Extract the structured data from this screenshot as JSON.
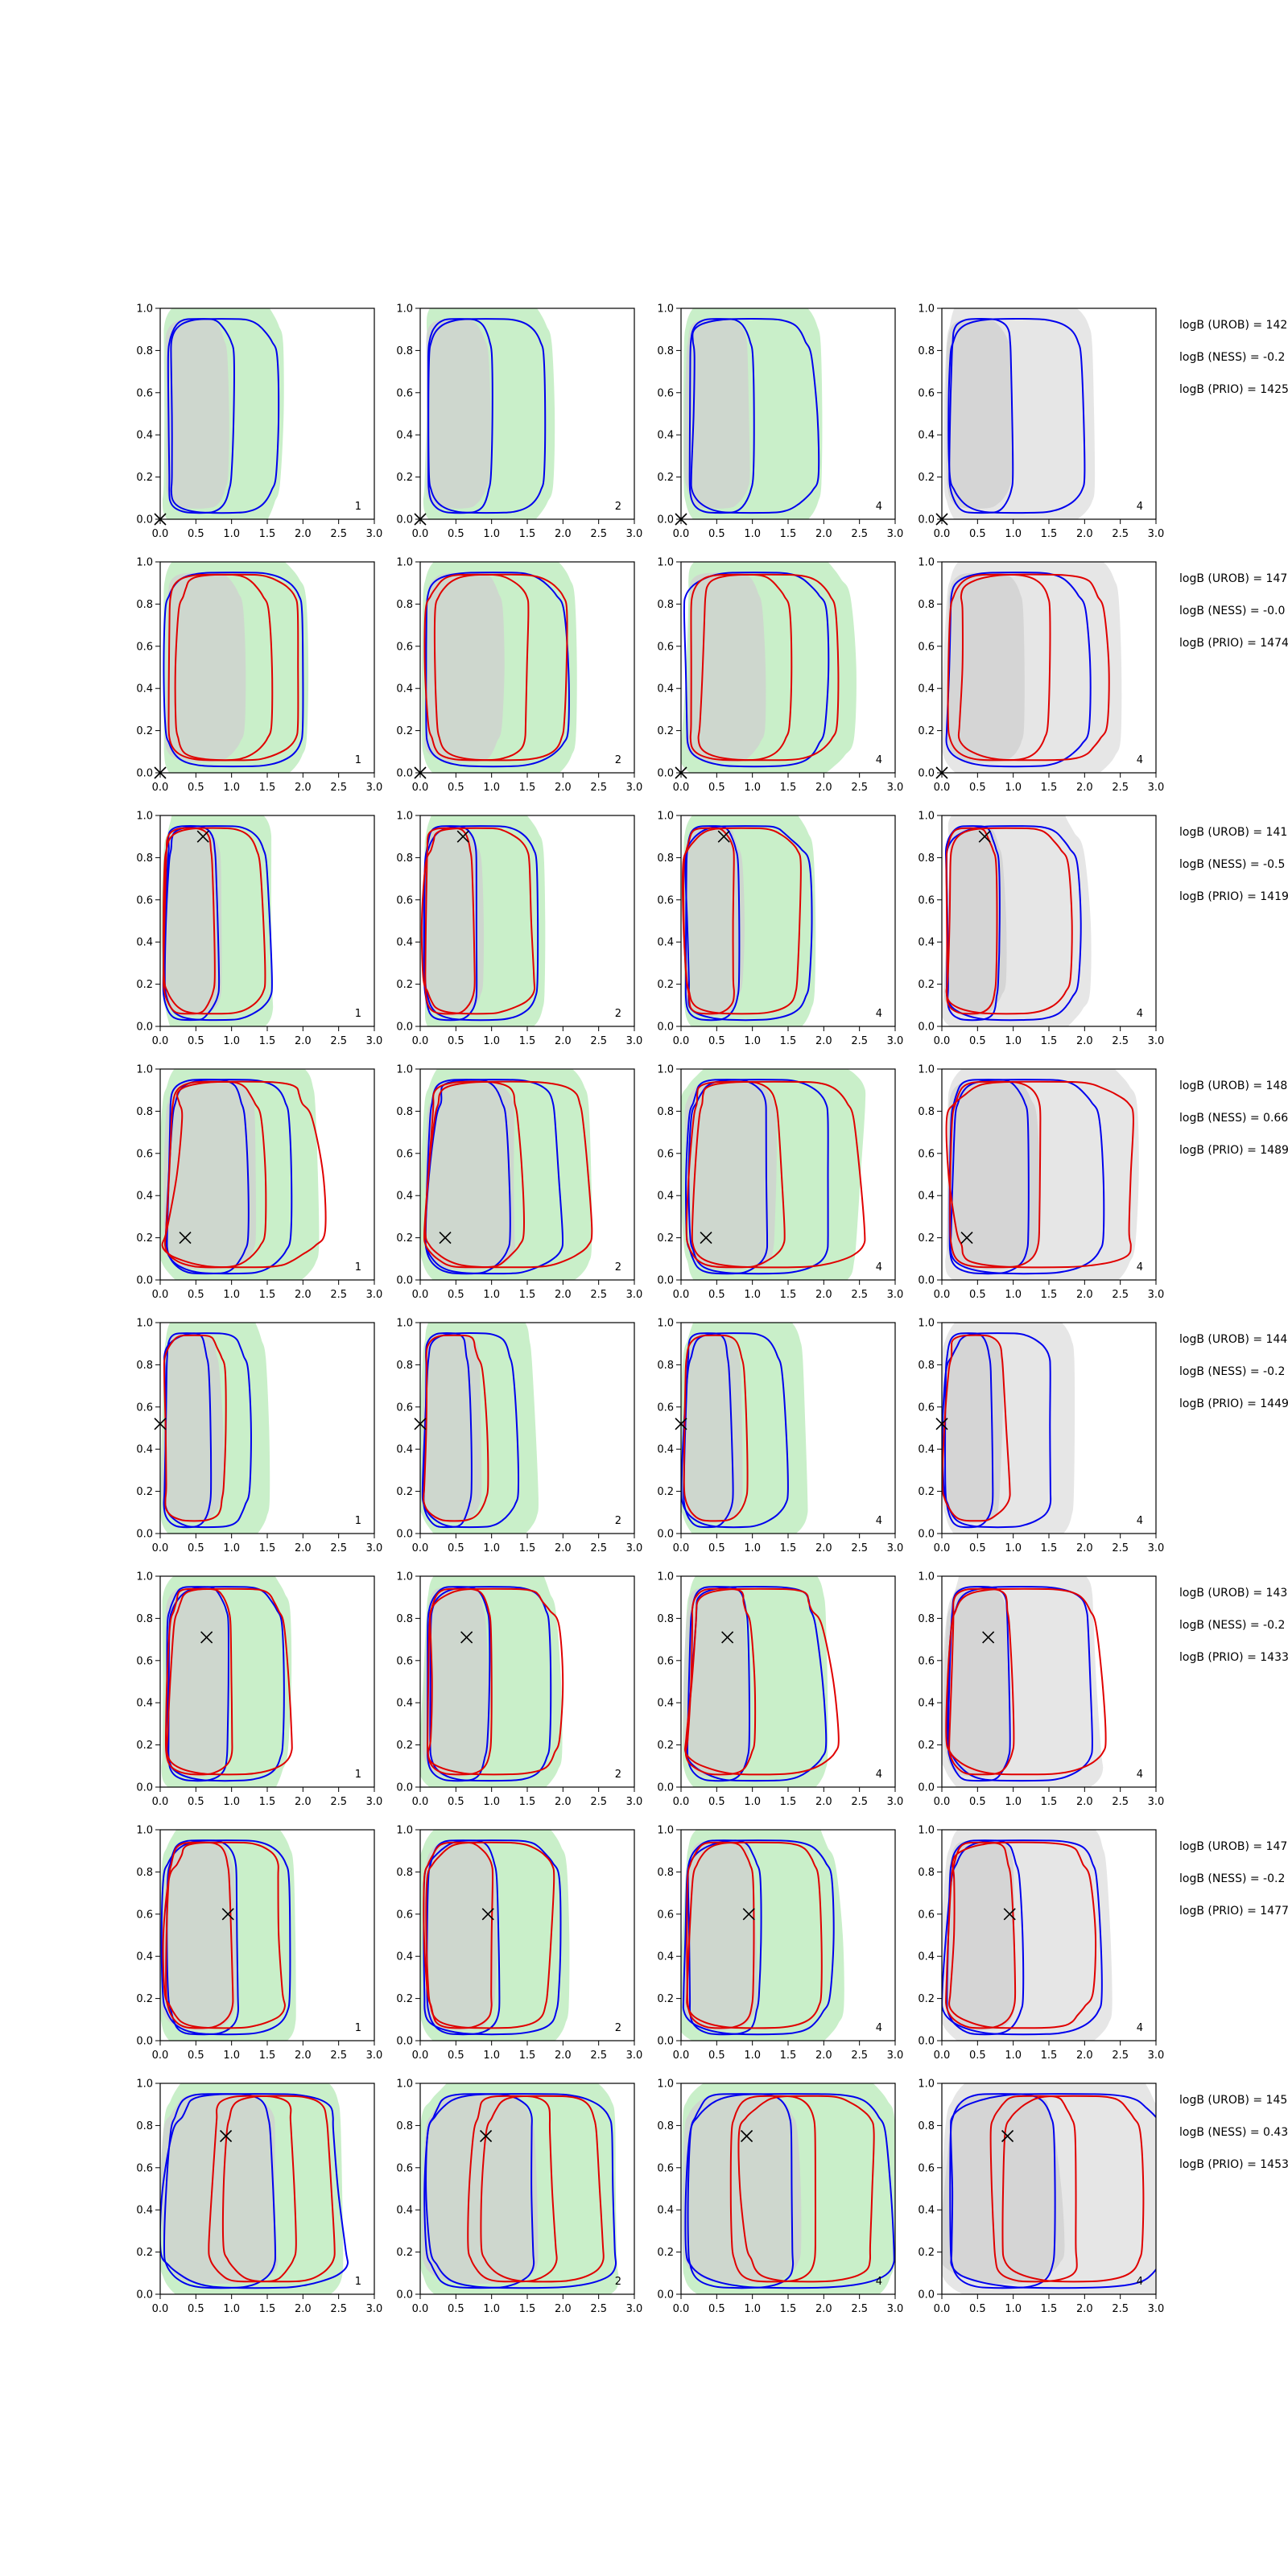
{
  "figure": {
    "side_column_visible_chars": 16
  },
  "chart_data": [
    {
      "type": "contour-grid",
      "row": 1,
      "xlim": [
        0.0,
        3.0
      ],
      "ylim": [
        0.0,
        1.0
      ],
      "xticks": [
        "0.0",
        "0.5",
        "1.0",
        "1.5",
        "2.0",
        "2.5",
        "3.0"
      ],
      "yticks": [
        "0.0",
        "0.2",
        "0.4",
        "0.6",
        "0.8",
        "1.0"
      ],
      "panel_labels": [
        "1",
        "2",
        "4",
        "4"
      ],
      "true_point": {
        "x": 0.0,
        "y": 0.0
      },
      "side_text": [
        "logB (UROB) = 142",
        "logB (NESS) = -0.2",
        "logB (PRIO) = 1425"
      ]
    },
    {
      "type": "contour-grid",
      "row": 2,
      "xlim": [
        0.0,
        3.0
      ],
      "ylim": [
        0.0,
        1.0
      ],
      "xticks": [
        "0.0",
        "0.5",
        "1.0",
        "1.5",
        "2.0",
        "2.5",
        "3.0"
      ],
      "yticks": [
        "0.0",
        "0.2",
        "0.4",
        "0.6",
        "0.8",
        "1.0"
      ],
      "panel_labels": [
        "1",
        "2",
        "4",
        "4"
      ],
      "true_point": {
        "x": 0.0,
        "y": 0.0
      },
      "side_text": [
        "logB (UROB) = 147",
        "logB (NESS) = -0.0",
        "logB (PRIO) = 1474"
      ]
    },
    {
      "type": "contour-grid",
      "row": 3,
      "xlim": [
        0.0,
        3.0
      ],
      "ylim": [
        0.0,
        1.0
      ],
      "xticks": [
        "0.0",
        "0.5",
        "1.0",
        "1.5",
        "2.0",
        "2.5",
        "3.0"
      ],
      "yticks": [
        "0.0",
        "0.2",
        "0.4",
        "0.6",
        "0.8",
        "1.0"
      ],
      "panel_labels": [
        "1",
        "2",
        "4",
        "4"
      ],
      "true_point": {
        "x": 0.6,
        "y": 0.9
      },
      "side_text": [
        "logB (UROB) = 141",
        "logB (NESS) = -0.5",
        "logB (PRIO) = 1419"
      ]
    },
    {
      "type": "contour-grid",
      "row": 4,
      "xlim": [
        0.0,
        3.0
      ],
      "ylim": [
        0.0,
        1.0
      ],
      "xticks": [
        "0.0",
        "0.5",
        "1.0",
        "1.5",
        "2.0",
        "2.5",
        "3.0"
      ],
      "yticks": [
        "0.0",
        "0.2",
        "0.4",
        "0.6",
        "0.8",
        "1.0"
      ],
      "panel_labels": [
        "1",
        "2",
        "4",
        "4"
      ],
      "true_point": {
        "x": 0.35,
        "y": 0.2
      },
      "side_text": [
        "logB (UROB) = 148",
        "logB (NESS) = 0.66",
        "logB (PRIO) = 1489"
      ]
    },
    {
      "type": "contour-grid",
      "row": 5,
      "xlim": [
        0.0,
        3.0
      ],
      "ylim": [
        0.0,
        1.0
      ],
      "xticks": [
        "0.0",
        "0.5",
        "1.0",
        "1.5",
        "2.0",
        "2.5",
        "3.0"
      ],
      "yticks": [
        "0.0",
        "0.2",
        "0.4",
        "0.6",
        "0.8",
        "1.0"
      ],
      "panel_labels": [
        "1",
        "2",
        "4",
        "4"
      ],
      "true_point": {
        "x": 0.0,
        "y": 0.52
      },
      "side_text": [
        "logB (UROB) = 144",
        "logB (NESS) = -0.2",
        "logB (PRIO) = 1449"
      ]
    },
    {
      "type": "contour-grid",
      "row": 6,
      "xlim": [
        0.0,
        3.0
      ],
      "ylim": [
        0.0,
        1.0
      ],
      "xticks": [
        "0.0",
        "0.5",
        "1.0",
        "1.5",
        "2.0",
        "2.5",
        "3.0"
      ],
      "yticks": [
        "0.0",
        "0.2",
        "0.4",
        "0.6",
        "0.8",
        "1.0"
      ],
      "panel_labels": [
        "1",
        "2",
        "4",
        "4"
      ],
      "true_point": {
        "x": 0.65,
        "y": 0.71
      },
      "side_text": [
        "logB (UROB) = 143",
        "logB (NESS) = -0.2",
        "logB (PRIO) = 1433"
      ]
    },
    {
      "type": "contour-grid",
      "row": 7,
      "xlim": [
        0.0,
        3.0
      ],
      "ylim": [
        0.0,
        1.0
      ],
      "xticks": [
        "0.0",
        "0.5",
        "1.0",
        "1.5",
        "2.0",
        "2.5",
        "3.0"
      ],
      "yticks": [
        "0.0",
        "0.2",
        "0.4",
        "0.6",
        "0.8",
        "1.0"
      ],
      "panel_labels": [
        "1",
        "2",
        "4",
        "4"
      ],
      "true_point": {
        "x": 0.95,
        "y": 0.6
      },
      "side_text": [
        "logB (UROB) = 147",
        "logB (NESS) = -0.2",
        "logB (PRIO) = 1477"
      ]
    },
    {
      "type": "contour-grid",
      "row": 8,
      "xlim": [
        0.0,
        3.0
      ],
      "ylim": [
        0.0,
        1.0
      ],
      "xticks": [
        "0.0",
        "0.5",
        "1.0",
        "1.5",
        "2.0",
        "2.5",
        "3.0"
      ],
      "yticks": [
        "0.0",
        "0.2",
        "0.4",
        "0.6",
        "0.8",
        "1.0"
      ],
      "panel_labels": [
        "1",
        "2",
        "4",
        "4"
      ],
      "true_point": {
        "x": 0.92,
        "y": 0.75
      },
      "side_text": [
        "logB (UROB) = 145",
        "logB (NESS) = 0.43",
        "logB (PRIO) = 1453"
      ]
    }
  ]
}
